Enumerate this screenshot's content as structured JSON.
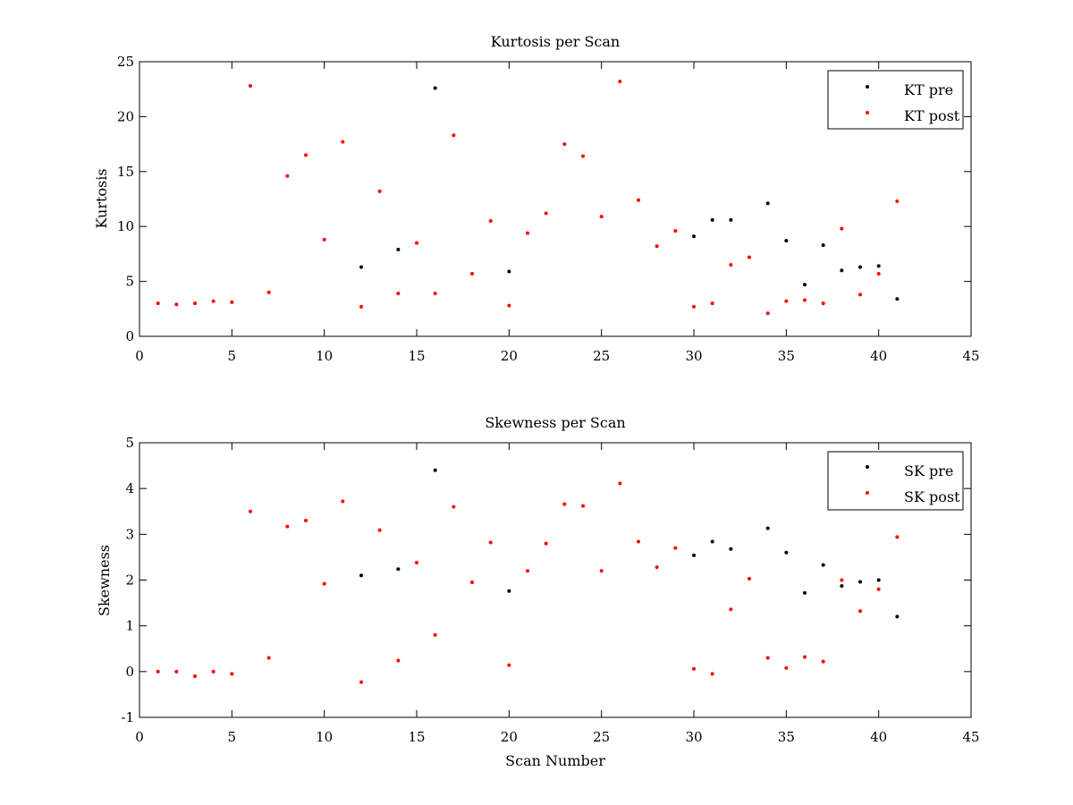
{
  "chart_data": [
    {
      "type": "scatter",
      "title": "Kurtosis per Scan",
      "xlabel": "",
      "ylabel": "Kurtosis",
      "xlim": [
        0,
        45
      ],
      "ylim": [
        0,
        25
      ],
      "xticks": [
        0,
        5,
        10,
        15,
        20,
        25,
        30,
        35,
        40,
        45
      ],
      "yticks": [
        0,
        5,
        10,
        15,
        20,
        25
      ],
      "grid": false,
      "legend_position": "top-right",
      "series": [
        {
          "name": "KT pre",
          "color": "#000000",
          "marker": "dot",
          "points": [
            [
              12,
              6.3
            ],
            [
              14,
              7.9
            ],
            [
              16,
              22.6
            ],
            [
              20,
              5.9
            ],
            [
              30,
              9.1
            ],
            [
              31,
              10.6
            ],
            [
              32,
              10.6
            ],
            [
              34,
              12.1
            ],
            [
              35,
              8.7
            ],
            [
              36,
              4.7
            ],
            [
              37,
              8.3
            ],
            [
              38,
              6.0
            ],
            [
              39,
              6.3
            ],
            [
              40,
              6.4
            ],
            [
              41,
              3.4
            ]
          ]
        },
        {
          "name": "KT post",
          "color": "#ff0000",
          "marker": "dot",
          "points": [
            [
              1,
              3.0
            ],
            [
              2,
              2.9
            ],
            [
              3,
              3.0
            ],
            [
              4,
              3.2
            ],
            [
              5,
              3.1
            ],
            [
              6,
              22.8
            ],
            [
              7,
              4.0
            ],
            [
              8,
              14.6
            ],
            [
              9,
              16.5
            ],
            [
              10,
              8.8
            ],
            [
              11,
              17.7
            ],
            [
              12,
              2.7
            ],
            [
              13,
              13.2
            ],
            [
              14,
              3.9
            ],
            [
              15,
              8.5
            ],
            [
              16,
              3.9
            ],
            [
              17,
              18.3
            ],
            [
              18,
              5.7
            ],
            [
              19,
              10.5
            ],
            [
              20,
              2.8
            ],
            [
              21,
              9.4
            ],
            [
              22,
              11.2
            ],
            [
              23,
              17.5
            ],
            [
              24,
              16.4
            ],
            [
              25,
              10.9
            ],
            [
              26,
              23.2
            ],
            [
              27,
              12.4
            ],
            [
              28,
              8.2
            ],
            [
              29,
              9.6
            ],
            [
              30,
              2.7
            ],
            [
              31,
              3.0
            ],
            [
              32,
              6.5
            ],
            [
              33,
              7.2
            ],
            [
              34,
              2.1
            ],
            [
              35,
              3.2
            ],
            [
              36,
              3.3
            ],
            [
              37,
              3.0
            ],
            [
              38,
              9.8
            ],
            [
              39,
              3.8
            ],
            [
              40,
              5.7
            ],
            [
              41,
              12.3
            ]
          ]
        }
      ]
    },
    {
      "type": "scatter",
      "title": "Skewness per Scan",
      "xlabel": "Scan Number",
      "ylabel": "Skewness",
      "xlim": [
        0,
        45
      ],
      "ylim": [
        -1,
        5
      ],
      "xticks": [
        0,
        5,
        10,
        15,
        20,
        25,
        30,
        35,
        40,
        45
      ],
      "yticks": [
        -1,
        0,
        1,
        2,
        3,
        4,
        5
      ],
      "grid": false,
      "legend_position": "top-right",
      "series": [
        {
          "name": "SK pre",
          "color": "#000000",
          "marker": "dot",
          "points": [
            [
              12,
              2.1
            ],
            [
              14,
              2.24
            ],
            [
              16,
              4.4
            ],
            [
              20,
              1.76
            ],
            [
              30,
              2.54
            ],
            [
              31,
              2.84
            ],
            [
              32,
              2.68
            ],
            [
              34,
              3.13
            ],
            [
              35,
              2.6
            ],
            [
              36,
              1.72
            ],
            [
              37,
              2.33
            ],
            [
              38,
              1.87
            ],
            [
              39,
              1.96
            ],
            [
              40,
              2.0
            ],
            [
              41,
              1.2
            ]
          ]
        },
        {
          "name": "SK post",
          "color": "#ff0000",
          "marker": "dot",
          "points": [
            [
              1,
              0.0
            ],
            [
              2,
              0.0
            ],
            [
              3,
              -0.1
            ],
            [
              4,
              0.0
            ],
            [
              5,
              -0.05
            ],
            [
              6,
              3.5
            ],
            [
              7,
              0.3
            ],
            [
              8,
              3.17
            ],
            [
              9,
              3.3
            ],
            [
              10,
              1.92
            ],
            [
              11,
              3.72
            ],
            [
              12,
              -0.23
            ],
            [
              13,
              3.09
            ],
            [
              14,
              0.24
            ],
            [
              15,
              2.38
            ],
            [
              16,
              0.8
            ],
            [
              17,
              3.6
            ],
            [
              18,
              1.95
            ],
            [
              19,
              2.82
            ],
            [
              20,
              0.14
            ],
            [
              21,
              2.2
            ],
            [
              22,
              2.8
            ],
            [
              23,
              3.66
            ],
            [
              24,
              3.62
            ],
            [
              25,
              2.2
            ],
            [
              26,
              4.11
            ],
            [
              27,
              2.84
            ],
            [
              28,
              2.28
            ],
            [
              29,
              2.7
            ],
            [
              30,
              0.06
            ],
            [
              31,
              -0.05
            ],
            [
              32,
              1.36
            ],
            [
              33,
              2.03
            ],
            [
              34,
              0.3
            ],
            [
              35,
              0.08
            ],
            [
              36,
              0.32
            ],
            [
              37,
              0.22
            ],
            [
              38,
              2.0
            ],
            [
              39,
              1.32
            ],
            [
              40,
              1.8
            ],
            [
              41,
              2.94
            ]
          ]
        }
      ]
    }
  ]
}
